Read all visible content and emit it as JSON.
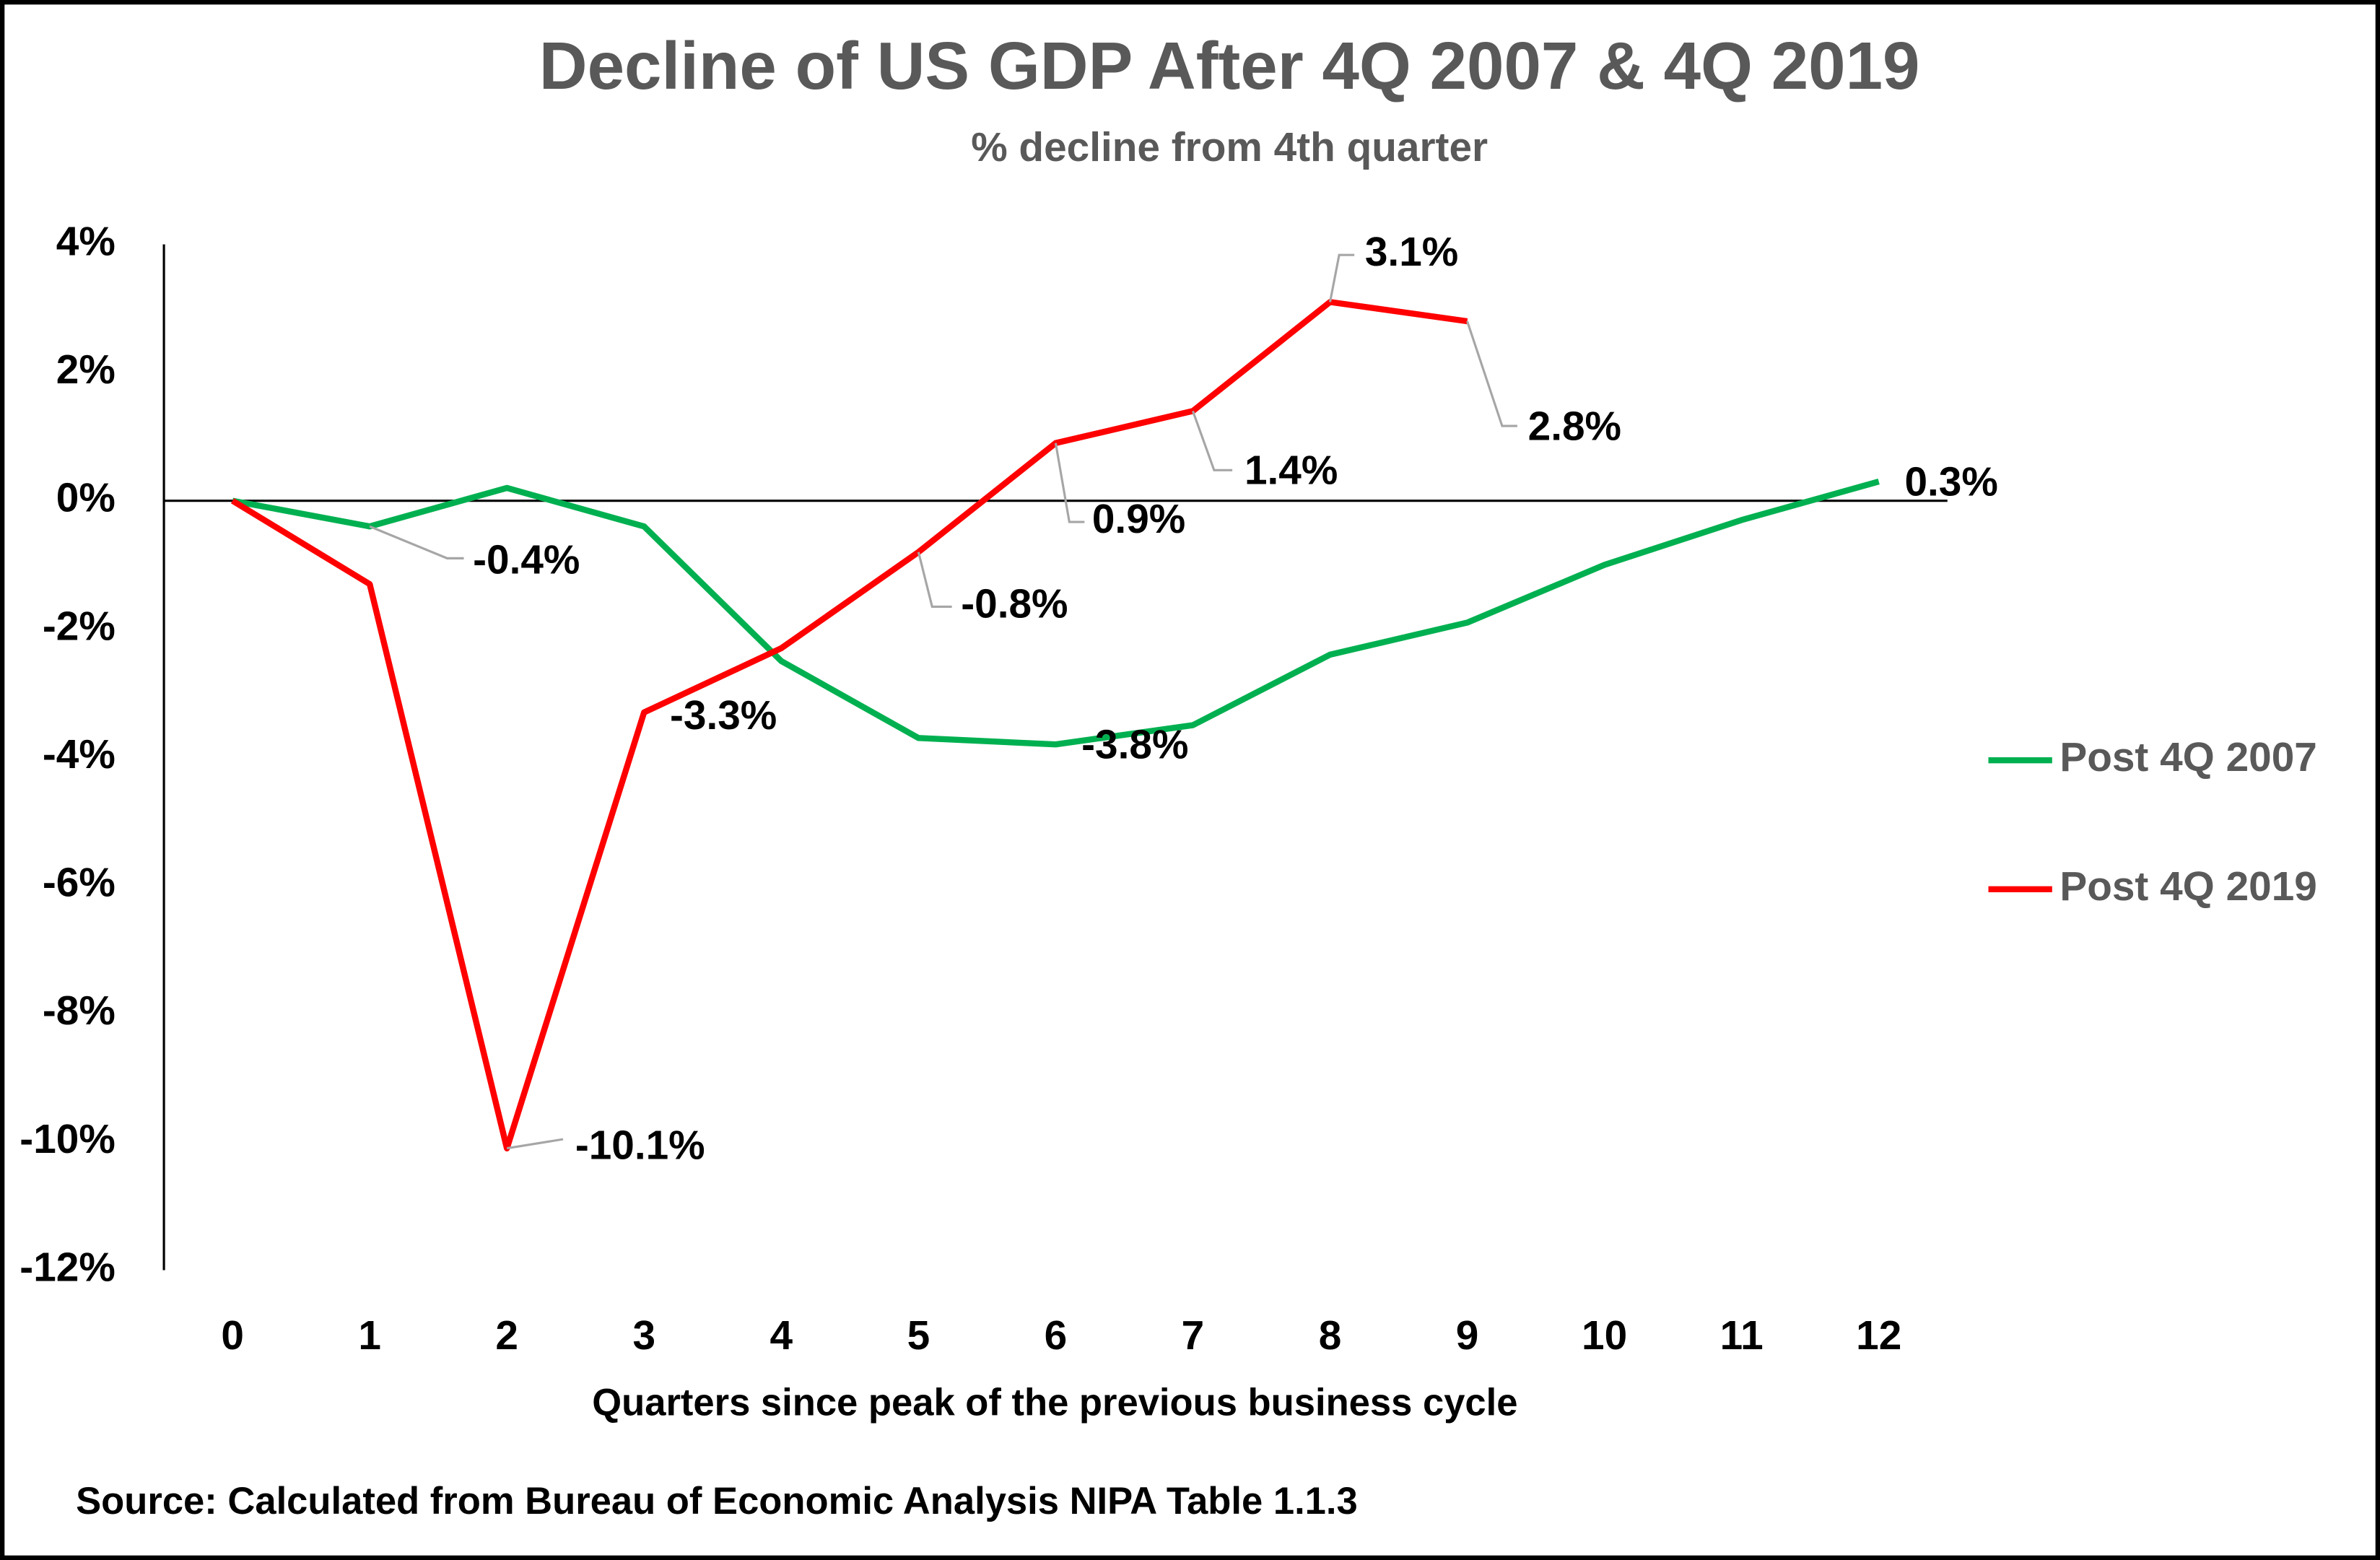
{
  "chart_data": {
    "type": "line",
    "title": "Decline of US GDP After 4Q 2007 & 4Q 2019",
    "subtitle": "% decline from 4th quarter",
    "x_label": "Quarters since peak of the previous business cycle",
    "source": "Source: Calculated from Bureau of Economic Analysis NIPA Table 1.1.3",
    "x": [
      0,
      1,
      2,
      3,
      4,
      5,
      6,
      7,
      8,
      9,
      10,
      11,
      12
    ],
    "xlim": [
      -0.5,
      12.5
    ],
    "xticks": [
      0,
      1,
      2,
      3,
      4,
      5,
      6,
      7,
      8,
      9,
      10,
      11,
      12
    ],
    "ylim": [
      -12,
      4
    ],
    "yticks": [
      {
        "value": 4,
        "label": "4%"
      },
      {
        "value": 2,
        "label": "2%"
      },
      {
        "value": 0,
        "label": "0%"
      },
      {
        "value": -2,
        "label": "-2%"
      },
      {
        "value": -4,
        "label": "-4%"
      },
      {
        "value": -6,
        "label": "-6%"
      },
      {
        "value": -8,
        "label": "-8%"
      },
      {
        "value": -10,
        "label": "-10%"
      },
      {
        "value": -12,
        "label": "-12%"
      }
    ],
    "grid": false,
    "legend": "right",
    "series": [
      {
        "name": "Post 4Q 2007",
        "color": "#00b050",
        "values": [
          0,
          -0.4,
          0.2,
          -0.4,
          -2.5,
          -3.7,
          -3.8,
          -3.5,
          -2.4,
          -1.9,
          -1.0,
          -0.3,
          0.3
        ],
        "value_labels": [
          null,
          "-0.4%",
          null,
          null,
          null,
          null,
          "-3.8%",
          null,
          null,
          null,
          null,
          null,
          "0.3%"
        ]
      },
      {
        "name": "Post 4Q 2019",
        "color": "#ff0000",
        "values": [
          0,
          -1.3,
          -10.1,
          -3.3,
          -2.3,
          -0.8,
          0.9,
          1.4,
          3.1,
          2.8,
          null,
          null,
          null
        ],
        "value_labels": [
          null,
          null,
          "-10.1%",
          "-3.3%",
          null,
          "-0.8%",
          "0.9%",
          "1.4%",
          "3.1%",
          "2.8%",
          null,
          null,
          null
        ]
      }
    ]
  }
}
